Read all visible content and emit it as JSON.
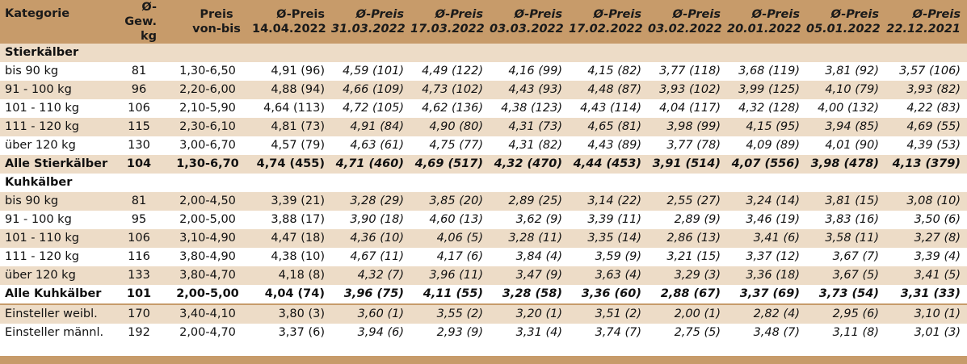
{
  "header": {
    "kategorie": "Kategorie",
    "gew_line1": "Ø-Gew.",
    "gew_line2": "kg",
    "preis_line1": "Preis",
    "preis_line2": "von-bis",
    "price_cols": [
      {
        "line1": "Ø-Preis",
        "line2": "14.04.2022"
      },
      {
        "line1": "Ø-Preis",
        "line2": "31.03.2022"
      },
      {
        "line1": "Ø-Preis",
        "line2": "17.03.2022"
      },
      {
        "line1": "Ø-Preis",
        "line2": "03.03.2022"
      },
      {
        "line1": "Ø-Preis",
        "line2": "17.02.2022"
      },
      {
        "line1": "Ø-Preis",
        "line2": "03.02.2022"
      },
      {
        "line1": "Ø-Preis",
        "line2": "20.01.2022"
      },
      {
        "line1": "Ø-Preis",
        "line2": "05.01.2022"
      },
      {
        "line1": "Ø-Preis",
        "line2": "22.12.2021"
      }
    ]
  },
  "sections": {
    "stier_title": "Stierkälber",
    "kuh_title": "Kuhkälber"
  },
  "stier_rows": [
    {
      "label": "bis 90 kg",
      "kg": "81",
      "range": "1,30-6,50",
      "p": [
        "4,91 (96)",
        "4,59 (101)",
        "4,49 (122)",
        "4,16 (99)",
        "4,15 (82)",
        "3,77 (118)",
        "3,68 (119)",
        "3,81 (92)",
        "3,57 (106)"
      ]
    },
    {
      "label": "91 - 100 kg",
      "kg": "96",
      "range": "2,20-6,00",
      "p": [
        "4,88 (94)",
        "4,66 (109)",
        "4,73 (102)",
        "4,43 (93)",
        "4,48 (87)",
        "3,93 (102)",
        "3,99 (125)",
        "4,10 (79)",
        "3,93 (82)"
      ]
    },
    {
      "label": "101 - 110 kg",
      "kg": "106",
      "range": "2,10-5,90",
      "p": [
        "4,64 (113)",
        "4,72 (105)",
        "4,62 (136)",
        "4,38 (123)",
        "4,43 (114)",
        "4,04 (117)",
        "4,32 (128)",
        "4,00 (132)",
        "4,22 (83)"
      ]
    },
    {
      "label": "111 - 120 kg",
      "kg": "115",
      "range": "2,30-6,10",
      "p": [
        "4,81 (73)",
        "4,91 (84)",
        "4,90 (80)",
        "4,31 (73)",
        "4,65 (81)",
        "3,98 (99)",
        "4,15 (95)",
        "3,94 (85)",
        "4,69 (55)"
      ]
    },
    {
      "label": "über 120 kg",
      "kg": "130",
      "range": "3,00-6,70",
      "p": [
        "4,57 (79)",
        "4,63 (61)",
        "4,75 (77)",
        "4,31 (82)",
        "4,43 (89)",
        "3,77 (78)",
        "4,09 (89)",
        "4,01 (90)",
        "4,39 (53)"
      ]
    }
  ],
  "stier_total": {
    "label": "Alle Stierkälber",
    "kg": "104",
    "range": "1,30-6,70",
    "p": [
      "4,74 (455)",
      "4,71 (460)",
      "4,69 (517)",
      "4,32 (470)",
      "4,44 (453)",
      "3,91 (514)",
      "4,07 (556)",
      "3,98 (478)",
      "4,13 (379)"
    ]
  },
  "kuh_rows": [
    {
      "label": "bis 90 kg",
      "kg": "81",
      "range": "2,00-4,50",
      "p": [
        "3,39 (21)",
        "3,28 (29)",
        "3,85 (20)",
        "2,89 (25)",
        "3,14 (22)",
        "2,55 (27)",
        "3,24 (14)",
        "3,81 (15)",
        "3,08 (10)"
      ]
    },
    {
      "label": "91 - 100 kg",
      "kg": "95",
      "range": "2,00-5,00",
      "p": [
        "3,88 (17)",
        "3,90 (18)",
        "4,60  (13)",
        "3,62 (9)",
        "3,39 (11)",
        "2,89 (9)",
        "3,46 (19)",
        "3,83 (16)",
        "3,50 (6)"
      ]
    },
    {
      "label": "101 - 110 kg",
      "kg": "106",
      "range": "3,10-4,90",
      "p": [
        "4,47 (18)",
        "4,36 (10)",
        "4,06 (5)",
        "3,28 (11)",
        "3,35 (14)",
        "2,86 (13)",
        "3,41 (6)",
        "3,58 (11)",
        "3,27 (8)"
      ]
    },
    {
      "label": "111 - 120 kg",
      "kg": "116",
      "range": "3,80-4,90",
      "p": [
        "4,38 (10)",
        "4,67 (11)",
        "4,17 (6)",
        "3,84 (4)",
        "3,59 (9)",
        "3,21 (15)",
        "3,37 (12)",
        "3,67 (7)",
        "3,39 (4)"
      ]
    },
    {
      "label": "über 120 kg",
      "kg": "133",
      "range": "3,80-4,70",
      "p": [
        "4,18 (8)",
        "4,32 (7)",
        "3,96 (11)",
        "3,47 (9)",
        "3,63 (4)",
        "3,29 (3)",
        "3,36 (18)",
        "3,67 (5)",
        "3,41 (5)"
      ]
    }
  ],
  "kuh_total": {
    "label": "Alle Kuhkälber",
    "kg": "101",
    "range": "2,00-5,00",
    "p": [
      "4,04 (74)",
      "3,96 (75)",
      "4,11 (55)",
      "3,28 (58)",
      "3,36 (60)",
      "2,88 (67)",
      "3,37 (69)",
      "3,73 (54)",
      "3,31 (33)"
    ]
  },
  "einsteller_rows": [
    {
      "label": "Einsteller weibl.",
      "kg": "170",
      "range": "3,40-4,10",
      "p": [
        "3,80 (3)",
        "3,60 (1)",
        "3,55 (2)",
        "3,20 (1)",
        "3,51 (2)",
        "2,00 (1)",
        "2,82 (4)",
        "2,95 (6)",
        "3,10 (1)"
      ]
    },
    {
      "label": "Einsteller männl.",
      "kg": "192",
      "range": "2,00-4,70",
      "p": [
        "3,37 (6)",
        "3,94 (6)",
        "2,93 (9)",
        "3,31 (4)",
        "3,74 (7)",
        "2,75 (5)",
        "3,48 (7)",
        "3,11 (8)",
        "3,01 (3)"
      ]
    }
  ],
  "colors": {
    "header_bg": "#c79b6a",
    "band_bg": "#eddcc7",
    "white_bg": "#ffffff"
  }
}
